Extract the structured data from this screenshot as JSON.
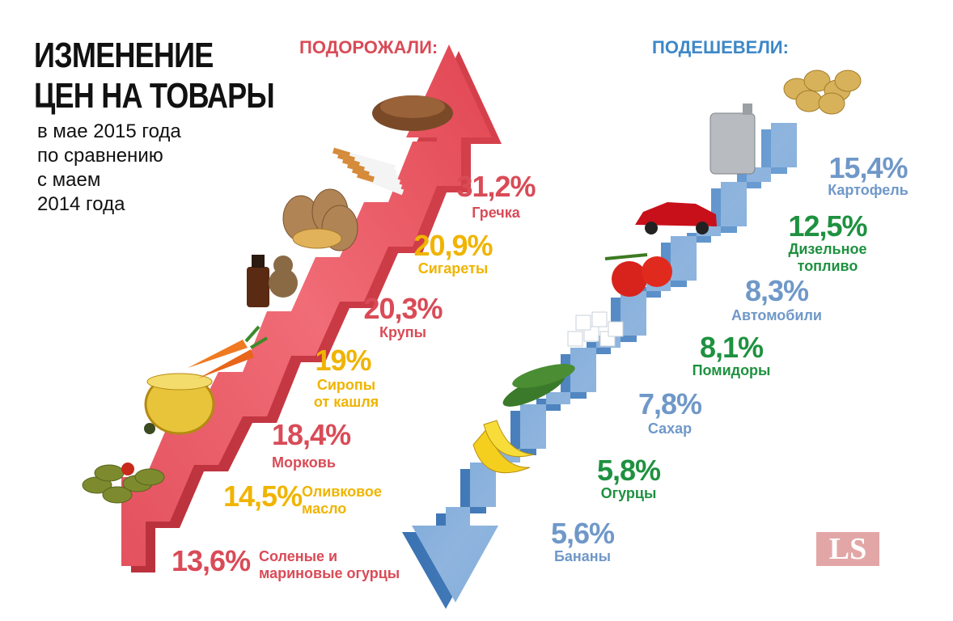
{
  "title_line1": "ИЗМЕНЕНИЕ",
  "title_line2": "ЦЕН НА ТОВАРЫ",
  "subtitle_lines": [
    "в мае 2015 года",
    "по сравнению",
    "с маем",
    "2014 года"
  ],
  "logo_text": "LS",
  "colors": {
    "red": "#d94b57",
    "yellow": "#f0b400",
    "blue": "#6f98c8",
    "green": "#1e9140"
  },
  "chart_data": [
    {
      "type": "bar",
      "title": "ПОДОРОЖАЛИ:",
      "units": "%",
      "categories": [
        "Соленые и маринованые огурцы",
        "Оливковое масло",
        "Морковь",
        "Сиропы от кашля",
        "Крупы",
        "Сигареты",
        "Гречка"
      ],
      "category_lines": [
        [
          "Соленые и",
          "мариновые огурцы"
        ],
        [
          "Оливковое",
          "масло"
        ],
        [
          "Морковь"
        ],
        [
          "Сиропы",
          "от кашля"
        ],
        [
          "Крупы"
        ],
        [
          "Сигареты"
        ],
        [
          "Гречка"
        ]
      ],
      "value_labels": [
        "13,6%",
        "14,5%",
        "18,4%",
        "19%",
        "20,3%",
        "20,9%",
        "31,2%"
      ],
      "values": [
        13.6,
        14.5,
        18.4,
        19,
        20.3,
        20.9,
        31.2
      ],
      "label_colors": [
        "red",
        "yellow",
        "red",
        "yellow",
        "red",
        "yellow",
        "red"
      ],
      "icons": [
        "pickles-icon",
        "olive-oil-icon",
        "carrot-icon",
        "cough-syrup-icon",
        "grain-sacks-icon",
        "cigarettes-icon",
        "buckwheat-icon"
      ]
    },
    {
      "type": "bar",
      "title": "ПОДЕШЕВЕЛИ:",
      "units": "%",
      "categories": [
        "Бананы",
        "Огурцы",
        "Сахар",
        "Помидоры",
        "Автомобили",
        "Дизельное топливо",
        "Картофель"
      ],
      "category_lines": [
        [
          "Бананы"
        ],
        [
          "Огурцы"
        ],
        [
          "Сахар"
        ],
        [
          "Помидоры"
        ],
        [
          "Автомобили"
        ],
        [
          "Дизельное",
          "топливо"
        ],
        [
          "Картофель"
        ]
      ],
      "value_labels": [
        "5,6%",
        "5,8%",
        "7,8%",
        "8,1%",
        "8,3%",
        "12,5%",
        "15,4%"
      ],
      "values": [
        5.6,
        5.8,
        7.8,
        8.1,
        8.3,
        12.5,
        15.4
      ],
      "label_colors": [
        "blue",
        "green",
        "blue",
        "green",
        "blue",
        "green",
        "blue"
      ],
      "icons": [
        "bananas-icon",
        "cucumbers-icon",
        "sugar-cubes-icon",
        "tomatoes-icon",
        "car-icon",
        "jerrycan-icon",
        "potatoes-icon"
      ]
    }
  ]
}
